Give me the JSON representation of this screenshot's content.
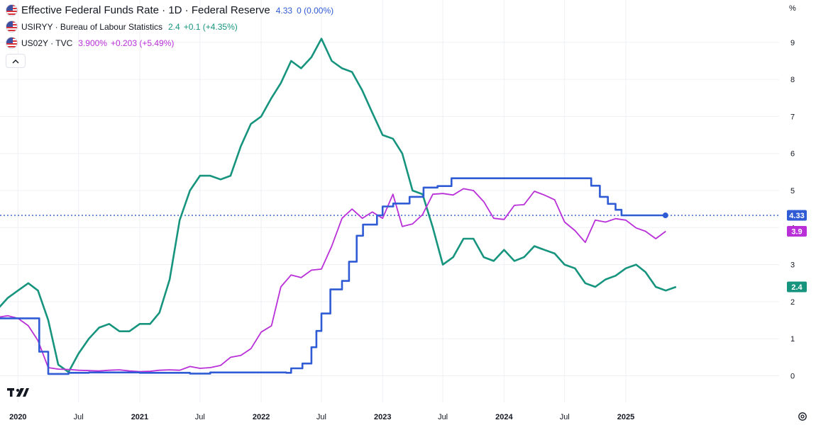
{
  "legend": {
    "main": {
      "title": "Effective Federal Funds Rate · 1D · Federal Reserve",
      "value": "4.33",
      "change": "0 (0.00%)",
      "color": "#2f5bd4"
    },
    "s2": {
      "title": "USIRYY · Bureau of Labour Statistics",
      "value": "2.4",
      "change": "+0.1 (+4.35%)",
      "color": "#17947e"
    },
    "s3": {
      "title": "US02Y · TVC",
      "value": "3.900%",
      "change": "+0.203 (+5.49%)",
      "color": "#b92fd8"
    },
    "collapse_icon": "chevron-up-icon"
  },
  "axis": {
    "unit": "%"
  },
  "icons": {
    "logo": "tradingview-logo",
    "settings": "gear-icon"
  },
  "chart_data": {
    "type": "line",
    "x_ticks": [
      "2020",
      "Jul",
      "2021",
      "Jul",
      "2022",
      "Jul",
      "2023",
      "Jul",
      "2024",
      "Jul",
      "2025"
    ],
    "ylim": [
      -0.7,
      9.9
    ],
    "y_ticks": [
      "0",
      "1",
      "2",
      "3",
      "4",
      "5",
      "6",
      "7",
      "8",
      "9"
    ],
    "last_value_labels": [
      "4.33",
      "3.9",
      "2.4"
    ],
    "grid": true,
    "series": [
      {
        "name": "Effective Federal Funds Rate",
        "color": "#2f5bd4",
        "style": "step",
        "points": [
          [
            "2019-11-01",
            1.55
          ],
          [
            "2020-03-01",
            1.55
          ],
          [
            "2020-03-05",
            0.65
          ],
          [
            "2020-04-01",
            0.05
          ],
          [
            "2020-06-01",
            0.08
          ],
          [
            "2020-08-01",
            0.09
          ],
          [
            "2021-01-01",
            0.08
          ],
          [
            "2021-06-01",
            0.06
          ],
          [
            "2021-08-01",
            0.09
          ],
          [
            "2022-03-17",
            0.08
          ],
          [
            "2022-04-01",
            0.2
          ],
          [
            "2022-05-05",
            0.33
          ],
          [
            "2022-06-01",
            0.77
          ],
          [
            "2022-06-16",
            1.21
          ],
          [
            "2022-07-01",
            1.68
          ],
          [
            "2022-07-28",
            2.33
          ],
          [
            "2022-09-01",
            2.56
          ],
          [
            "2022-09-22",
            3.08
          ],
          [
            "2022-10-15",
            3.78
          ],
          [
            "2022-11-03",
            4.08
          ],
          [
            "2022-12-15",
            4.33
          ],
          [
            "2023-01-01",
            4.57
          ],
          [
            "2023-02-02",
            4.65
          ],
          [
            "2023-03-23",
            4.83
          ],
          [
            "2023-05-04",
            5.08
          ],
          [
            "2023-06-15",
            5.12
          ],
          [
            "2023-07-27",
            5.33
          ],
          [
            "2024-09-19",
            5.13
          ],
          [
            "2024-10-15",
            4.83
          ],
          [
            "2024-11-08",
            4.64
          ],
          [
            "2024-12-01",
            4.48
          ],
          [
            "2024-12-19",
            4.33
          ],
          [
            "2025-04-30",
            4.33
          ]
        ]
      },
      {
        "name": "USIRYY",
        "color": "#17947e",
        "style": "line",
        "points": [
          [
            "2019-11-01",
            1.8
          ],
          [
            "2019-12-01",
            2.1
          ],
          [
            "2020-01-01",
            2.3
          ],
          [
            "2020-02-01",
            2.5
          ],
          [
            "2020-03-01",
            2.3
          ],
          [
            "2020-04-01",
            1.5
          ],
          [
            "2020-05-01",
            0.3
          ],
          [
            "2020-06-01",
            0.1
          ],
          [
            "2020-07-01",
            0.6
          ],
          [
            "2020-08-01",
            1.0
          ],
          [
            "2020-09-01",
            1.3
          ],
          [
            "2020-10-01",
            1.4
          ],
          [
            "2020-11-01",
            1.2
          ],
          [
            "2020-12-01",
            1.2
          ],
          [
            "2021-01-01",
            1.4
          ],
          [
            "2021-02-01",
            1.4
          ],
          [
            "2021-03-01",
            1.7
          ],
          [
            "2021-04-01",
            2.6
          ],
          [
            "2021-05-01",
            4.2
          ],
          [
            "2021-06-01",
            5.0
          ],
          [
            "2021-07-01",
            5.4
          ],
          [
            "2021-08-01",
            5.4
          ],
          [
            "2021-09-01",
            5.3
          ],
          [
            "2021-10-01",
            5.4
          ],
          [
            "2021-11-01",
            6.2
          ],
          [
            "2021-12-01",
            6.8
          ],
          [
            "2022-01-01",
            7.0
          ],
          [
            "2022-02-01",
            7.5
          ],
          [
            "2022-03-01",
            7.9
          ],
          [
            "2022-04-01",
            8.5
          ],
          [
            "2022-05-01",
            8.3
          ],
          [
            "2022-06-01",
            8.6
          ],
          [
            "2022-07-01",
            9.1
          ],
          [
            "2022-08-01",
            8.5
          ],
          [
            "2022-09-01",
            8.3
          ],
          [
            "2022-10-01",
            8.2
          ],
          [
            "2022-11-01",
            7.7
          ],
          [
            "2022-12-01",
            7.1
          ],
          [
            "2023-01-01",
            6.5
          ],
          [
            "2023-02-01",
            6.4
          ],
          [
            "2023-03-01",
            6.0
          ],
          [
            "2023-04-01",
            5.0
          ],
          [
            "2023-05-01",
            4.9
          ],
          [
            "2023-06-01",
            4.0
          ],
          [
            "2023-07-01",
            3.0
          ],
          [
            "2023-08-01",
            3.2
          ],
          [
            "2023-09-01",
            3.7
          ],
          [
            "2023-10-01",
            3.7
          ],
          [
            "2023-11-01",
            3.2
          ],
          [
            "2023-12-01",
            3.1
          ],
          [
            "2024-01-01",
            3.4
          ],
          [
            "2024-02-01",
            3.1
          ],
          [
            "2024-03-01",
            3.2
          ],
          [
            "2024-04-01",
            3.5
          ],
          [
            "2024-05-01",
            3.4
          ],
          [
            "2024-06-01",
            3.3
          ],
          [
            "2024-07-01",
            3.0
          ],
          [
            "2024-08-01",
            2.9
          ],
          [
            "2024-09-01",
            2.5
          ],
          [
            "2024-10-01",
            2.4
          ],
          [
            "2024-11-01",
            2.6
          ],
          [
            "2024-12-01",
            2.7
          ],
          [
            "2025-01-01",
            2.9
          ],
          [
            "2025-02-01",
            3.0
          ],
          [
            "2025-03-01",
            2.8
          ],
          [
            "2025-04-01",
            2.4
          ],
          [
            "2025-05-01",
            2.3
          ],
          [
            "2025-06-01",
            2.4
          ]
        ]
      },
      {
        "name": "US02Y",
        "color": "#b92fd8",
        "style": "line",
        "points": [
          [
            "2019-11-01",
            1.58
          ],
          [
            "2019-12-01",
            1.62
          ],
          [
            "2020-01-01",
            1.55
          ],
          [
            "2020-02-01",
            1.35
          ],
          [
            "2020-03-01",
            0.95
          ],
          [
            "2020-04-01",
            0.22
          ],
          [
            "2020-05-01",
            0.18
          ],
          [
            "2020-06-01",
            0.17
          ],
          [
            "2020-07-01",
            0.15
          ],
          [
            "2020-08-01",
            0.14
          ],
          [
            "2020-09-01",
            0.13
          ],
          [
            "2020-10-01",
            0.15
          ],
          [
            "2020-11-01",
            0.16
          ],
          [
            "2020-12-01",
            0.13
          ],
          [
            "2021-01-01",
            0.11
          ],
          [
            "2021-02-01",
            0.12
          ],
          [
            "2021-03-01",
            0.15
          ],
          [
            "2021-04-01",
            0.16
          ],
          [
            "2021-05-01",
            0.15
          ],
          [
            "2021-06-01",
            0.25
          ],
          [
            "2021-07-01",
            0.2
          ],
          [
            "2021-08-01",
            0.22
          ],
          [
            "2021-09-01",
            0.28
          ],
          [
            "2021-10-01",
            0.5
          ],
          [
            "2021-11-01",
            0.55
          ],
          [
            "2021-12-01",
            0.73
          ],
          [
            "2022-01-01",
            1.18
          ],
          [
            "2022-02-01",
            1.35
          ],
          [
            "2022-03-01",
            2.4
          ],
          [
            "2022-04-01",
            2.72
          ],
          [
            "2022-05-01",
            2.65
          ],
          [
            "2022-06-01",
            2.85
          ],
          [
            "2022-07-01",
            2.88
          ],
          [
            "2022-08-01",
            3.5
          ],
          [
            "2022-09-01",
            4.25
          ],
          [
            "2022-10-01",
            4.5
          ],
          [
            "2022-11-01",
            4.25
          ],
          [
            "2022-12-01",
            4.42
          ],
          [
            "2023-01-01",
            4.25
          ],
          [
            "2023-02-01",
            4.9
          ],
          [
            "2023-03-01",
            4.03
          ],
          [
            "2023-04-01",
            4.1
          ],
          [
            "2023-05-01",
            4.35
          ],
          [
            "2023-06-01",
            4.9
          ],
          [
            "2023-07-01",
            4.92
          ],
          [
            "2023-08-01",
            4.88
          ],
          [
            "2023-09-01",
            5.05
          ],
          [
            "2023-10-01",
            5.0
          ],
          [
            "2023-11-01",
            4.7
          ],
          [
            "2023-12-01",
            4.25
          ],
          [
            "2024-01-01",
            4.22
          ],
          [
            "2024-02-01",
            4.6
          ],
          [
            "2024-03-01",
            4.62
          ],
          [
            "2024-04-01",
            4.98
          ],
          [
            "2024-05-01",
            4.88
          ],
          [
            "2024-06-01",
            4.75
          ],
          [
            "2024-07-01",
            4.15
          ],
          [
            "2024-08-01",
            3.92
          ],
          [
            "2024-09-01",
            3.6
          ],
          [
            "2024-10-01",
            4.2
          ],
          [
            "2024-11-01",
            4.15
          ],
          [
            "2024-12-01",
            4.24
          ],
          [
            "2025-01-01",
            4.2
          ],
          [
            "2025-02-01",
            3.99
          ],
          [
            "2025-03-01",
            3.9
          ],
          [
            "2025-04-01",
            3.7
          ],
          [
            "2025-05-01",
            3.9
          ]
        ]
      }
    ]
  }
}
